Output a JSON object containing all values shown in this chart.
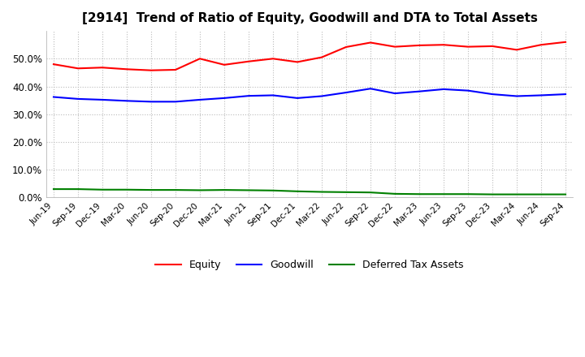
{
  "title": "[2914]  Trend of Ratio of Equity, Goodwill and DTA to Total Assets",
  "title_fontsize": 11,
  "x_labels": [
    "Jun-19",
    "Sep-19",
    "Dec-19",
    "Mar-20",
    "Jun-20",
    "Sep-20",
    "Dec-20",
    "Mar-21",
    "Jun-21",
    "Sep-21",
    "Dec-21",
    "Mar-22",
    "Jun-22",
    "Sep-22",
    "Dec-22",
    "Mar-23",
    "Jun-23",
    "Sep-23",
    "Dec-23",
    "Mar-24",
    "Jun-24",
    "Sep-24"
  ],
  "equity": [
    0.48,
    0.465,
    0.468,
    0.462,
    0.458,
    0.46,
    0.5,
    0.478,
    0.49,
    0.5,
    0.488,
    0.505,
    0.542,
    0.558,
    0.543,
    0.548,
    0.55,
    0.543,
    0.545,
    0.532,
    0.55,
    0.56
  ],
  "goodwill": [
    0.362,
    0.355,
    0.352,
    0.348,
    0.345,
    0.345,
    0.352,
    0.358,
    0.366,
    0.368,
    0.358,
    0.365,
    0.378,
    0.392,
    0.375,
    0.382,
    0.39,
    0.385,
    0.372,
    0.365,
    0.368,
    0.372
  ],
  "dta": [
    0.03,
    0.03,
    0.028,
    0.028,
    0.027,
    0.027,
    0.026,
    0.027,
    0.026,
    0.025,
    0.022,
    0.02,
    0.019,
    0.018,
    0.013,
    0.012,
    0.012,
    0.012,
    0.011,
    0.011,
    0.011,
    0.011
  ],
  "equity_color": "#ff0000",
  "goodwill_color": "#0000ff",
  "dta_color": "#008000",
  "ylim": [
    0.0,
    0.6
  ],
  "yticks": [
    0.0,
    0.1,
    0.2,
    0.3,
    0.4,
    0.5
  ],
  "background_color": "#ffffff",
  "grid_color": "#bbbbbb",
  "legend_labels": [
    "Equity",
    "Goodwill",
    "Deferred Tax Assets"
  ]
}
